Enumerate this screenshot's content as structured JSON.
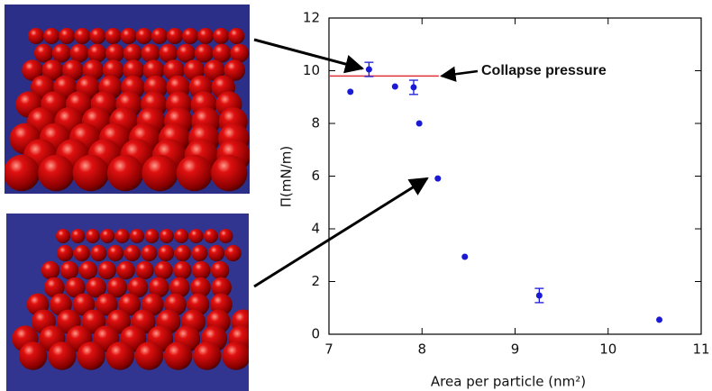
{
  "chart_data": {
    "type": "scatter",
    "xlabel": "Area per particle (nm²)",
    "ylabel": "Π(mN/m)",
    "xlim": [
      7,
      11
    ],
    "xticks": [
      7,
      8,
      9,
      10,
      11
    ],
    "ylim": [
      0,
      12
    ],
    "yticks": [
      0,
      2,
      4,
      6,
      8,
      10,
      12
    ],
    "series": [
      {
        "color": "#1a1ad6",
        "x": [
          7.23,
          7.43,
          7.71,
          7.91,
          7.97,
          8.17,
          8.46,
          9.26,
          10.55
        ],
        "values": [
          9.2,
          10.05,
          9.4,
          9.37,
          8.0,
          5.91,
          2.94,
          1.47,
          0.55
        ],
        "errors": [
          null,
          0.27,
          null,
          0.27,
          null,
          null,
          null,
          0.27,
          null
        ]
      }
    ],
    "reference": {
      "label": "Collapse pressure",
      "y": 9.8,
      "x": [
        7,
        8.18
      ],
      "color": "#e0303a"
    }
  }
}
